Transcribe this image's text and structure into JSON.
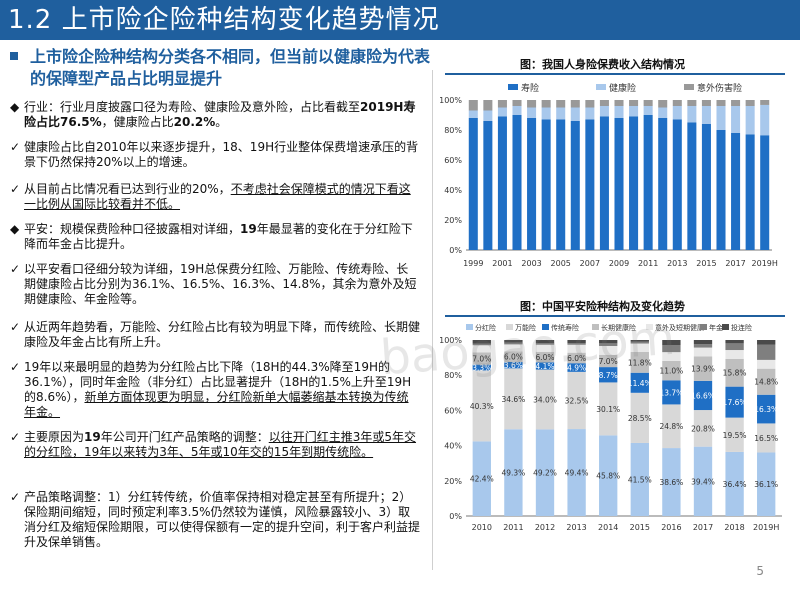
{
  "header": {
    "title": "1.2 上市险企险种结构变化趋势情况"
  },
  "headline": "上市险企险种结构分类各不相同，但当前以健康险为代表的保障型产品占比明显提升",
  "bullets": [
    {
      "marker": "◆",
      "parts": [
        {
          "t": "行业：行业月度披露口径为寿险、健康险及意外险，占比看截至"
        },
        {
          "t": "2019H寿险占比76.5%",
          "b": true
        },
        {
          "t": "，健康险占比"
        },
        {
          "t": "20.2%",
          "b": true
        },
        {
          "t": "。"
        }
      ]
    },
    {
      "marker": "✓",
      "parts": [
        {
          "t": "健康险占比自2010年以来逐步提升，18、19H行业整体保费增速承压的背景下仍然保持20%以上的增速。"
        }
      ]
    },
    {
      "marker": "✓",
      "parts": [
        {
          "t": "从目前占比情况看已达到行业的20%，"
        },
        {
          "t": "不考虑社会保障模式的情况下看这一比例从国际比较看并不低。",
          "u": true
        }
      ]
    },
    {
      "marker": "◆",
      "parts": [
        {
          "t": "平安：规模保费险种口径披露相对详细，"
        },
        {
          "t": "19",
          "b": true
        },
        {
          "t": "年最显著的变化在于分红险下降而年金占比提升。"
        }
      ]
    },
    {
      "marker": "✓",
      "parts": [
        {
          "t": "以平安看口径细分较为详细，19H总保费分红险、万能险、传统寿险、长期健康险占比分别为36.1%、16.5%、16.3%、14.8%，其余为意外及短期健康险、年金险等。"
        }
      ]
    },
    {
      "marker": "✓",
      "parts": [
        {
          "t": "从近两年趋势看，万能险、分红险占比有较为明显下降，而传统险、长期健康险及年金占比有所上升。"
        }
      ]
    },
    {
      "marker": "✓",
      "parts": [
        {
          "t": "19年以来最明显的趋势为分红险占比下降（18H的44.3%降至19H的36.1%），同时年金险（非分红）占比显著提升（18H的1.5%上升至19H的8.6%），"
        },
        {
          "t": "新单方面体现更为明显，分红险新单大幅萎缩基本转换为传统年金。",
          "u": true
        }
      ]
    },
    {
      "marker": "✓",
      "parts": [
        {
          "t": "主要原因为"
        },
        {
          "t": "19",
          "b": true
        },
        {
          "t": "年公司开门红产品策略的调整："
        },
        {
          "t": "以往开门红主推3年或5年交的分红险，19年以来转为3年、5年或10年交的15年到期传统险。",
          "u": true
        }
      ]
    },
    {
      "marker": "✓",
      "parts": [
        {
          "t": "产品策略调整：1）分红转传统，价值率保持相对稳定甚至有所提升；2）保险期间缩短，同时预定利率3.5%仍然较为谨慎，风险暴露较小、3）取消分红及缩短保险期限，可以使得保额有一定的提升空间，利于客户利益提升及保单销售。"
        }
      ]
    }
  ],
  "chart1": {
    "title": "图：我国人身险保费收入结构情况",
    "legend": [
      "寿险",
      "健康险",
      "意外伤害险"
    ],
    "colors": [
      "#1f6fc5",
      "#a8c8ec",
      "#999999"
    ],
    "chart_data": {
      "type": "bar",
      "stacked": true,
      "categories": [
        "1999",
        "2000",
        "2001",
        "2002",
        "2003",
        "2004",
        "2005",
        "2006",
        "2007",
        "2008",
        "2009",
        "2010",
        "2011",
        "2012",
        "2013",
        "2014",
        "2015",
        "2016",
        "2017",
        "2018",
        "2019H"
      ],
      "x_tick_labels": [
        "1999",
        "2001",
        "2003",
        "2005",
        "2007",
        "2009",
        "2011",
        "2013",
        "2015",
        "2017",
        "2019H"
      ],
      "series": [
        {
          "name": "寿险",
          "values": [
            88,
            86,
            89,
            90,
            88,
            87,
            87,
            86,
            87,
            89,
            88,
            89,
            90,
            88,
            87,
            85,
            84,
            80,
            78,
            77,
            76.5
          ]
        },
        {
          "name": "健康险",
          "values": [
            5,
            7,
            6,
            6,
            7,
            8,
            8,
            9,
            8,
            7,
            8,
            7,
            6,
            7,
            9,
            11,
            12,
            16,
            18,
            19,
            20.2
          ]
        },
        {
          "name": "意外伤害险",
          "values": [
            7,
            7,
            5,
            4,
            5,
            5,
            5,
            5,
            5,
            4,
            4,
            4,
            4,
            5,
            4,
            4,
            4,
            4,
            4,
            4,
            3.3
          ]
        }
      ],
      "y_ticks": [
        "0%",
        "20%",
        "40%",
        "60%",
        "80%",
        "100%"
      ],
      "ylim": [
        0,
        100
      ]
    }
  },
  "chart2": {
    "title": "图：中国平安险种结构及变化趋势",
    "legend": [
      "分红险",
      "万能险",
      "传统寿险",
      "长期健康险",
      "意外及短期健康",
      "年金",
      "投连险"
    ],
    "colors": [
      "#a8c8ec",
      "#d8d8d8",
      "#1f6fc5",
      "#bfbfbf",
      "#e8e8e8",
      "#7f7f7f",
      "#4a4a4a"
    ],
    "chart_data": {
      "type": "bar",
      "stacked": true,
      "categories": [
        "2010",
        "2011",
        "2012",
        "2013",
        "2014",
        "2015",
        "2016",
        "2017",
        "2018",
        "2019H"
      ],
      "series": [
        {
          "name": "分红险",
          "values": [
            42.4,
            49.3,
            49.2,
            49.4,
            45.8,
            41.5,
            38.6,
            39.4,
            36.4,
            36.1
          ]
        },
        {
          "name": "万能险",
          "values": [
            40.3,
            34.6,
            34.0,
            32.5,
            30.1,
            28.5,
            24.8,
            20.8,
            19.5,
            16.5
          ]
        },
        {
          "name": "传统寿险",
          "values": [
            3.3,
            3.6,
            4.1,
            4.9,
            8.7,
            11.4,
            13.7,
            16.6,
            17.6,
            16.3
          ]
        },
        {
          "name": "长期健康险",
          "values": [
            7.0,
            6.0,
            6.0,
            6.0,
            7.0,
            11.8,
            11.0,
            13.9,
            15.8,
            14.8
          ]
        },
        {
          "name": "意外及短期健康",
          "values": [
            4.0,
            4.0,
            4.0,
            4.5,
            5.0,
            4.8,
            5.0,
            5.0,
            5.0,
            5.0
          ]
        },
        {
          "name": "年金",
          "values": [
            1.0,
            1.0,
            1.0,
            1.0,
            1.5,
            1.0,
            3.9,
            2.0,
            3.8,
            8.6
          ]
        },
        {
          "name": "投连险",
          "values": [
            2.0,
            1.5,
            1.7,
            1.7,
            1.9,
            1.0,
            3.0,
            2.3,
            1.9,
            2.7
          ]
        }
      ],
      "labeled_series": [
        "分红险",
        "万能险",
        "传统寿险",
        "长期健康险"
      ],
      "y_ticks": [
        "0%",
        "20%",
        "40%",
        "60%",
        "80%",
        "100%"
      ],
      "ylim": [
        0,
        100
      ]
    }
  },
  "watermark": "baogao.com",
  "page_number": "5"
}
